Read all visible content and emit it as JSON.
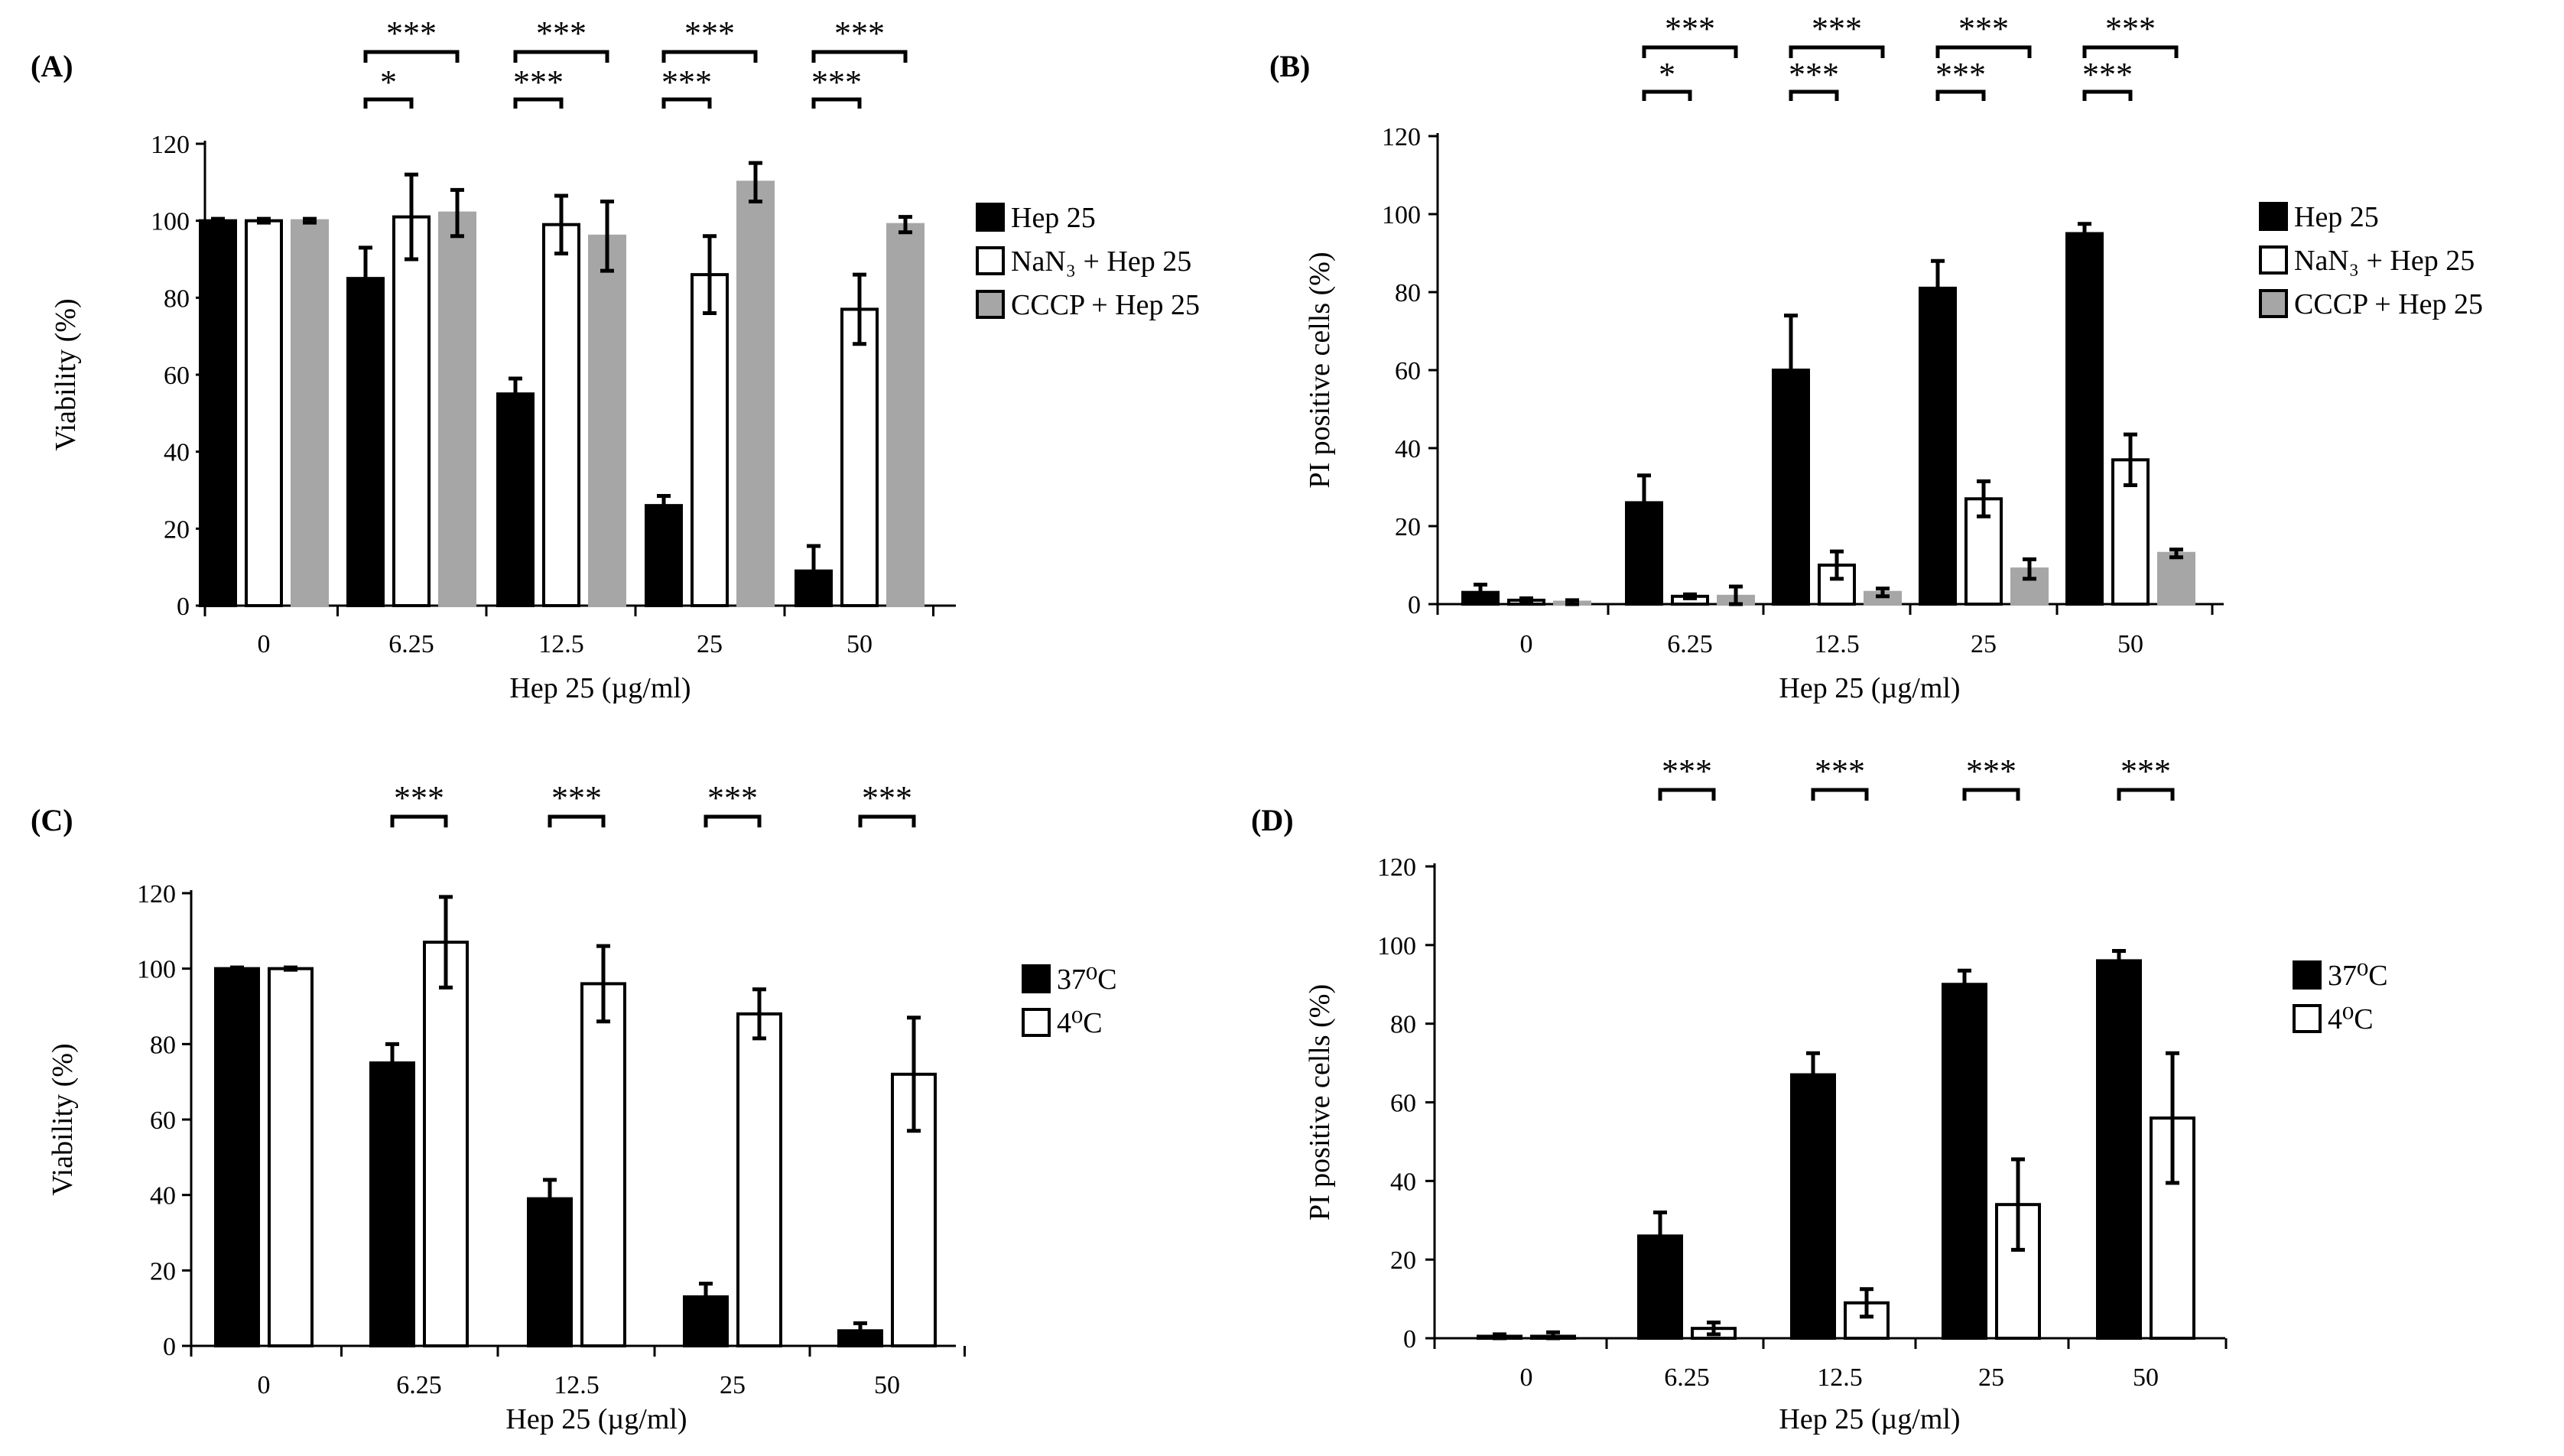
{
  "colors": {
    "black": "#000000",
    "white": "#ffffff",
    "gray": "#a6a6a6"
  },
  "chart_data": [
    {
      "panel": "(A)",
      "type": "bar",
      "ylabel": "Viability (%)",
      "xlabel": "Hep 25 (µg/ml)",
      "ylim": [
        0,
        120
      ],
      "yticks": [
        "0",
        "20",
        "40",
        "60",
        "80",
        "100",
        "120"
      ],
      "categories": [
        "0",
        "6.25",
        "12.5",
        "25",
        "50"
      ],
      "legend_position": "right",
      "series": [
        {
          "name": "Hep 25",
          "color": "black",
          "values": [
            100,
            85,
            55,
            26,
            9
          ],
          "errors": [
            0.5,
            8,
            4,
            2.5,
            6.5
          ]
        },
        {
          "name": "NaN₃ + Hep 25",
          "color": "white",
          "values": [
            100,
            101,
            99,
            86,
            77
          ],
          "errors": [
            0.5,
            11,
            7.5,
            10,
            9
          ]
        },
        {
          "name": "CCCP + Hep 25",
          "color": "gray",
          "values": [
            100,
            102,
            96,
            110,
            99
          ],
          "errors": [
            0.5,
            6,
            9,
            5,
            2
          ]
        }
      ],
      "significance": [
        {
          "category": "6.25",
          "inner": "*",
          "outer": "***"
        },
        {
          "category": "12.5",
          "inner": "***",
          "outer": "***"
        },
        {
          "category": "25",
          "inner": "***",
          "outer": "***"
        },
        {
          "category": "50",
          "inner": "***",
          "outer": "***"
        }
      ]
    },
    {
      "panel": "(B)",
      "type": "bar",
      "ylabel": "PI positive cells (%)",
      "xlabel": "Hep 25 (µg/ml)",
      "ylim": [
        0,
        120
      ],
      "yticks": [
        "0",
        "20",
        "40",
        "60",
        "80",
        "100",
        "120"
      ],
      "categories": [
        "0",
        "6.25",
        "12.5",
        "25",
        "50"
      ],
      "legend_position": "right",
      "series": [
        {
          "name": "Hep 25",
          "color": "black",
          "values": [
            3,
            26,
            60,
            81,
            95
          ],
          "errors": [
            2,
            7,
            14,
            7,
            2.5
          ]
        },
        {
          "name": "NaN₃ + Hep 25",
          "color": "white",
          "values": [
            1,
            2,
            10,
            27,
            37
          ],
          "errors": [
            0.5,
            0.5,
            3.5,
            4.5,
            6.5
          ]
        },
        {
          "name": "CCCP + Hep 25",
          "color": "gray",
          "values": [
            0.5,
            2,
            3,
            9,
            13
          ],
          "errors": [
            0.5,
            2.5,
            1,
            2.5,
            1
          ]
        }
      ],
      "significance": [
        {
          "category": "6.25",
          "inner": "*",
          "outer": "***"
        },
        {
          "category": "12.5",
          "inner": "***",
          "outer": "***"
        },
        {
          "category": "25",
          "inner": "***",
          "outer": "***"
        },
        {
          "category": "50",
          "inner": "***",
          "outer": "***"
        }
      ]
    },
    {
      "panel": "(C)",
      "type": "bar",
      "ylabel": "Viability (%)",
      "xlabel": "Hep 25 (µg/ml)",
      "ylim": [
        0,
        120
      ],
      "yticks": [
        "0",
        "20",
        "40",
        "60",
        "80",
        "100",
        "120"
      ],
      "categories": [
        "0",
        "6.25",
        "12.5",
        "25",
        "50"
      ],
      "legend_position": "right",
      "series": [
        {
          "name": "37⁰C",
          "color": "black",
          "values": [
            100,
            75,
            39,
            13,
            4
          ],
          "errors": [
            0.3,
            5,
            5,
            3.5,
            2
          ]
        },
        {
          "name": "4⁰C",
          "color": "white",
          "values": [
            100,
            107,
            96,
            88,
            72
          ],
          "errors": [
            0.3,
            12,
            10,
            6.5,
            15
          ]
        }
      ],
      "significance": [
        {
          "category": "6.25",
          "inner": "",
          "outer": "***"
        },
        {
          "category": "12.5",
          "inner": "",
          "outer": "***"
        },
        {
          "category": "25",
          "inner": "",
          "outer": "***"
        },
        {
          "category": "50",
          "inner": "",
          "outer": "***"
        }
      ]
    },
    {
      "panel": "(D)",
      "type": "bar",
      "ylabel": "PI positive cells (%)",
      "xlabel": "Hep 25 (µg/ml)",
      "ylim": [
        0,
        120
      ],
      "yticks": [
        "0",
        "20",
        "40",
        "60",
        "80",
        "100",
        "120"
      ],
      "categories": [
        "0",
        "6.25",
        "12.5",
        "25",
        "50"
      ],
      "legend_position": "right",
      "series": [
        {
          "name": "37⁰C",
          "color": "black",
          "values": [
            0.5,
            26,
            67,
            90,
            96
          ],
          "errors": [
            0.5,
            6,
            5.5,
            3.5,
            2.5
          ]
        },
        {
          "name": "4⁰C",
          "color": "white",
          "values": [
            0.5,
            2.5,
            9,
            34,
            56
          ],
          "errors": [
            1,
            1.5,
            3.5,
            11.5,
            16.5
          ]
        }
      ],
      "significance": [
        {
          "category": "6.25",
          "inner": "",
          "outer": "***"
        },
        {
          "category": "12.5",
          "inner": "",
          "outer": "***"
        },
        {
          "category": "25",
          "inner": "",
          "outer": "***"
        },
        {
          "category": "50",
          "inner": "",
          "outer": "***"
        }
      ]
    }
  ]
}
